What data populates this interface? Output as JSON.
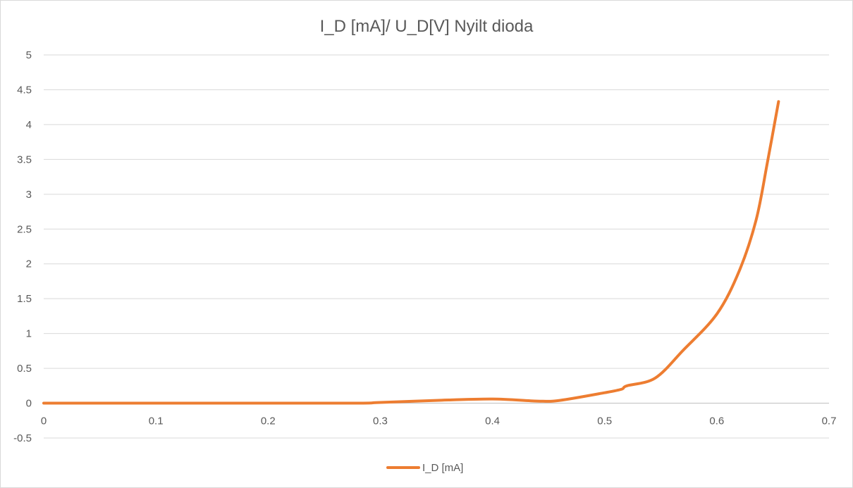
{
  "chart_data": {
    "type": "line",
    "title": "I_D [mA]/ U_D[V]  Nyilt dioda",
    "xlabel": "",
    "ylabel": "",
    "xlim": [
      0,
      0.7
    ],
    "ylim": [
      -0.5,
      5
    ],
    "x_ticks": [
      "0",
      "0.1",
      "0.2",
      "0.3",
      "0.4",
      "0.5",
      "0.6",
      "0.7"
    ],
    "y_ticks": [
      "-0.5",
      "0",
      "0.5",
      "1",
      "1.5",
      "2",
      "2.5",
      "3",
      "3.5",
      "4",
      "4.5",
      "5"
    ],
    "grid": true,
    "legend_position": "bottom",
    "series": [
      {
        "name": "I_D [mA]",
        "color": "#ED7D31",
        "x": [
          0,
          0.1,
          0.2,
          0.28,
          0.3,
          0.35,
          0.4,
          0.44,
          0.46,
          0.5,
          0.515,
          0.52,
          0.545,
          0.57,
          0.6,
          0.62,
          0.635,
          0.645,
          0.655
        ],
        "y": [
          0,
          0,
          0,
          0,
          0.01,
          0.04,
          0.06,
          0.03,
          0.04,
          0.15,
          0.2,
          0.25,
          0.36,
          0.76,
          1.28,
          1.9,
          2.63,
          3.45,
          4.33
        ]
      }
    ]
  }
}
